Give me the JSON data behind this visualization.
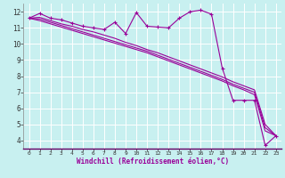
{
  "xlabel": "Windchill (Refroidissement éolien,°C)",
  "x_values": [
    0,
    1,
    2,
    3,
    4,
    5,
    6,
    7,
    8,
    9,
    10,
    11,
    12,
    13,
    14,
    15,
    16,
    17,
    18,
    19,
    20,
    21,
    22,
    23
  ],
  "line1": [
    11.6,
    11.9,
    11.6,
    11.5,
    11.3,
    11.1,
    11.0,
    10.9,
    11.35,
    10.65,
    11.95,
    11.1,
    11.05,
    11.0,
    11.6,
    12.0,
    12.1,
    11.85,
    8.5,
    6.5,
    6.5,
    6.5,
    3.7,
    4.3
  ],
  "line2": [
    11.6,
    11.65,
    11.45,
    11.25,
    11.1,
    10.9,
    10.75,
    10.55,
    10.35,
    10.1,
    9.9,
    9.65,
    9.45,
    9.2,
    8.95,
    8.7,
    8.45,
    8.2,
    7.95,
    7.65,
    7.4,
    7.15,
    5.0,
    4.3
  ],
  "line3": [
    11.6,
    11.55,
    11.35,
    11.15,
    10.95,
    10.75,
    10.55,
    10.35,
    10.15,
    9.95,
    9.75,
    9.55,
    9.3,
    9.05,
    8.8,
    8.55,
    8.3,
    8.05,
    7.8,
    7.5,
    7.25,
    7.0,
    4.8,
    4.3
  ],
  "line4": [
    11.6,
    11.45,
    11.25,
    11.05,
    10.85,
    10.65,
    10.45,
    10.25,
    10.05,
    9.85,
    9.65,
    9.45,
    9.2,
    8.95,
    8.7,
    8.45,
    8.2,
    7.95,
    7.7,
    7.4,
    7.15,
    6.85,
    4.6,
    4.3
  ],
  "line_color": "#990099",
  "bg_color": "#c8f0f0",
  "grid_color": "#ffffff",
  "ylim": [
    3.5,
    12.5
  ],
  "yticks": [
    4,
    5,
    6,
    7,
    8,
    9,
    10,
    11,
    12
  ],
  "xlim": [
    -0.5,
    23.5
  ],
  "marker": "+"
}
